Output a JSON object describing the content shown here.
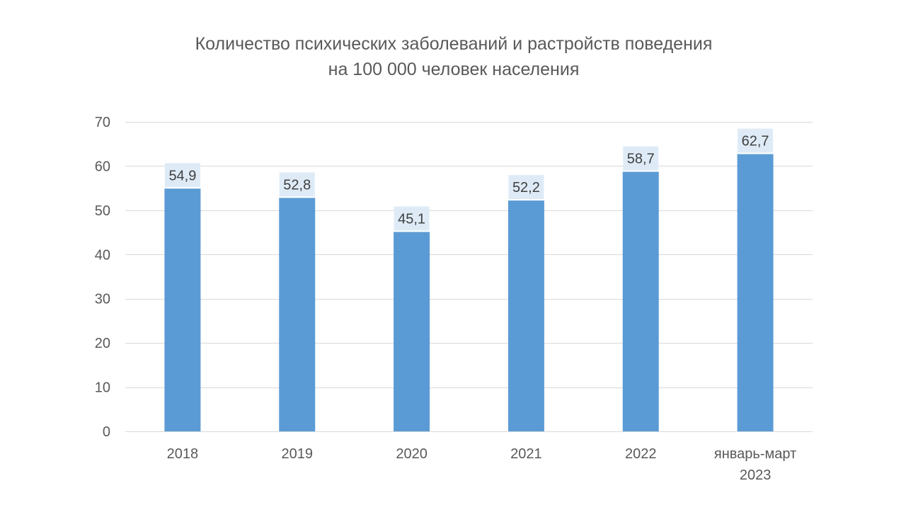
{
  "chart_data": {
    "type": "bar",
    "title_lines": [
      "Количество психических заболеваний и растройств поведения",
      "на 100 000 человек населения"
    ],
    "categories": [
      [
        "2018"
      ],
      [
        "2019"
      ],
      [
        "2020"
      ],
      [
        "2021"
      ],
      [
        "2022"
      ],
      [
        "январь-март",
        "2023"
      ]
    ],
    "values": [
      54.9,
      52.8,
      45.1,
      52.2,
      58.7,
      62.7
    ],
    "data_labels": [
      "54,9",
      "52,8",
      "45,1",
      "52,2",
      "58,7",
      "62,7"
    ],
    "ylim": [
      0,
      70
    ],
    "yticks": [
      0,
      10,
      20,
      30,
      40,
      50,
      60,
      70
    ],
    "xlabel": "",
    "ylabel": "",
    "grid": true,
    "legend": "none",
    "colors": {
      "bar": "#5b9bd5",
      "label_background": "#deebf7",
      "gridline": "#d9d9d9",
      "text": "#595959"
    }
  }
}
